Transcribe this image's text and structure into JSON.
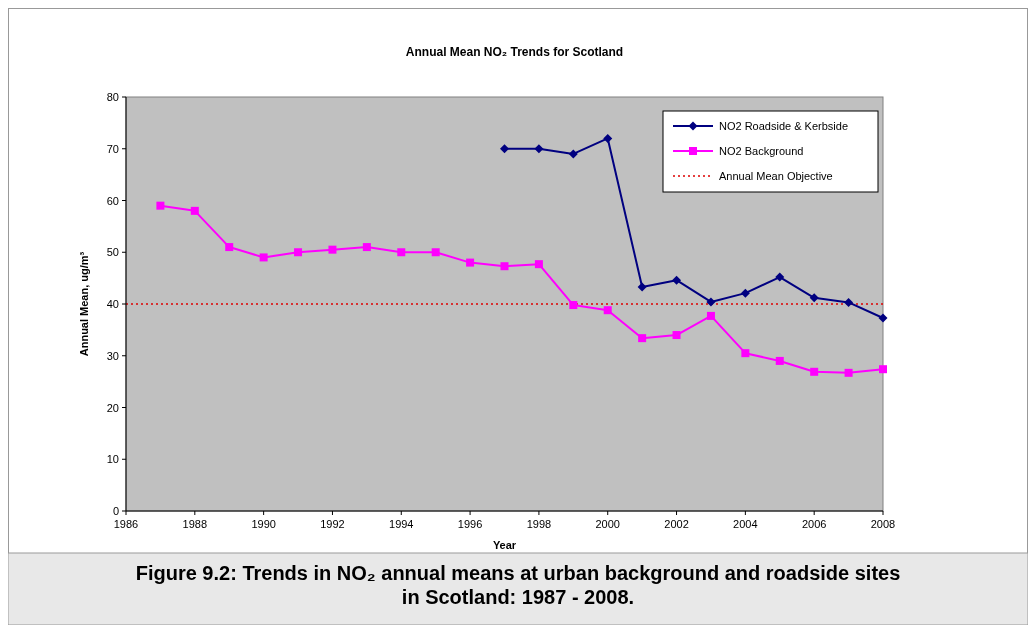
{
  "chart_data": {
    "type": "line",
    "title": "Annual Mean NO₂ Trends for Scotland",
    "xlabel": "Year",
    "ylabel": "Annual Mean, ug/m³",
    "xlim": [
      1986,
      2008
    ],
    "xticks": [
      1986,
      1988,
      1990,
      1992,
      1994,
      1996,
      1998,
      2000,
      2002,
      2004,
      2006,
      2008
    ],
    "ylim": [
      0,
      80
    ],
    "yticks": [
      0,
      10,
      20,
      30,
      40,
      50,
      60,
      70,
      80
    ],
    "x": [
      1987,
      1988,
      1989,
      1990,
      1991,
      1992,
      1993,
      1994,
      1995,
      1996,
      1997,
      1998,
      1999,
      2000,
      2001,
      2002,
      2003,
      2004,
      2005,
      2006,
      2007,
      2008
    ],
    "series": [
      {
        "name": "NO2 Roadside & Kerbside",
        "color": "#000080",
        "marker": "diamond",
        "values": [
          null,
          null,
          null,
          null,
          null,
          null,
          null,
          null,
          null,
          null,
          70,
          70,
          69,
          72,
          43.3,
          44.6,
          40.4,
          42.1,
          45.2,
          41.2,
          40.3,
          37.3
        ]
      },
      {
        "name": "NO2 Background",
        "color": "#ff00ff",
        "marker": "square",
        "values": [
          59,
          58,
          51,
          49,
          50,
          50.5,
          51,
          50,
          50,
          48,
          47.3,
          47.7,
          39.8,
          38.8,
          33.4,
          34,
          37.7,
          30.5,
          29,
          26.9,
          26.7,
          27.4
        ]
      }
    ],
    "ref_lines": [
      {
        "axis": "y",
        "value": 40,
        "label": "Annual Mean Objective",
        "color": "#dd0000",
        "line_style": "dotted"
      }
    ],
    "legend": "top right",
    "annotations": [
      "Figure 9.2: Trends in NO₂ annual means at urban background and roadside sites in Scotland: 1987 - 2008."
    ]
  }
}
